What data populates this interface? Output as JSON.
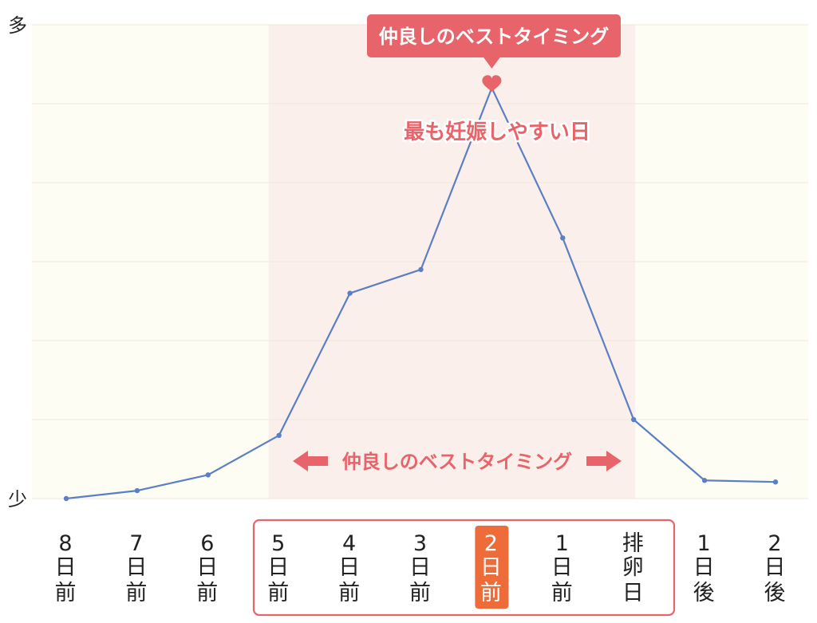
{
  "chart_data": {
    "type": "line",
    "categories": [
      [
        "8",
        "日",
        "前"
      ],
      [
        "7",
        "日",
        "前"
      ],
      [
        "6",
        "日",
        "前"
      ],
      [
        "5",
        "日",
        "前"
      ],
      [
        "4",
        "日",
        "前"
      ],
      [
        "3",
        "日",
        "前"
      ],
      [
        "2",
        "日",
        "前"
      ],
      [
        "1",
        "日",
        "前"
      ],
      [
        "排",
        "卵",
        "日"
      ],
      [
        "1",
        "日",
        "後"
      ],
      [
        "2",
        "日",
        "後"
      ]
    ],
    "values": [
      0,
      1,
      3,
      8,
      26,
      29,
      52,
      33,
      10,
      2.3,
      2.1
    ],
    "ylim": [
      0,
      60
    ],
    "y_top_label": "多",
    "y_bottom_label": "少",
    "grid": true,
    "highlight_range": [
      3,
      8
    ],
    "highlight_category_index": 6,
    "best_timing_label": "仲良しのベストタイミング",
    "peak_callout": "仲良しのベストタイミング",
    "peak_annotation": "最も妊娠しやすい日",
    "colors": {
      "line": "#5b7fc4",
      "highlight_band": "#fbefeb",
      "background": "#fdfdf3",
      "accent": "#e8646b",
      "highlight_label_bg": "#ee6b3a",
      "grid": "#efe7d9",
      "text": "#222222"
    }
  }
}
